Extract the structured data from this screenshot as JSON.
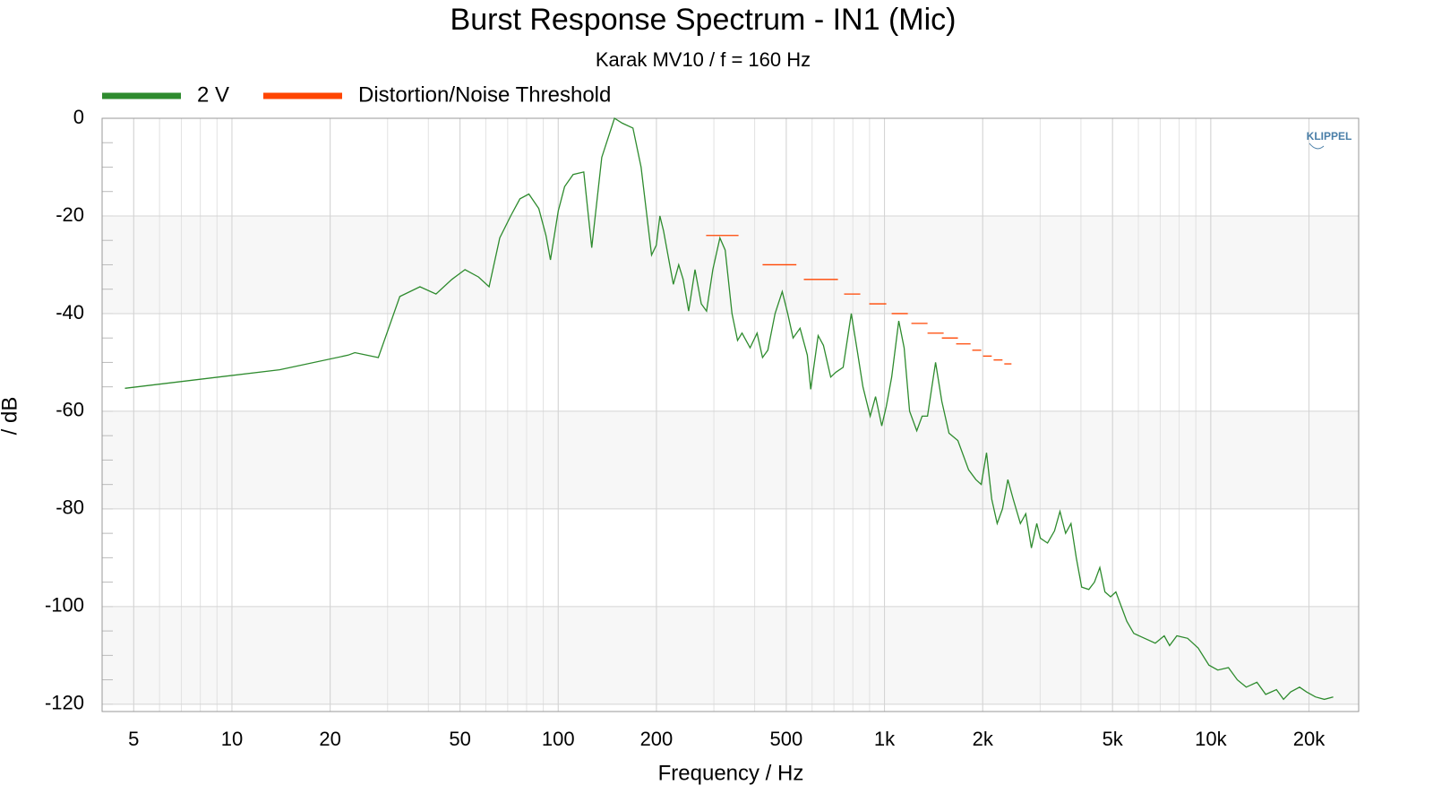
{
  "chart_data": {
    "type": "line",
    "title": "Burst Response Spectrum - IN1 (Mic)",
    "subtitle": "Karak MV10 / f = 160 Hz",
    "x_label": "Frequency / Hz",
    "y_label": "/ dB",
    "watermark": "KLIPPEL",
    "x_scale": "log",
    "grid": true,
    "minor_grid": true,
    "legend": "top-left",
    "xlim": [
      4,
      28400
    ],
    "ylim": [
      -121.5,
      0
    ],
    "xticks": [
      5,
      10,
      20,
      50,
      100,
      200,
      500,
      {
        "value": 1000,
        "label": "1k"
      },
      {
        "value": 2000,
        "label": "2k"
      },
      {
        "value": 5000,
        "label": "5k"
      },
      {
        "value": 10000,
        "label": "10k"
      },
      {
        "value": 20000,
        "label": "20k"
      }
    ],
    "yticks": [
      0,
      -20,
      -40,
      -60,
      -80,
      -100,
      -120
    ],
    "series": [
      {
        "name": "2 V",
        "color": "#2e8b2e",
        "x": [
          4.7,
          14.0,
          22.7,
          23.8,
          28.1,
          32.7,
          37.7,
          42.2,
          47.2,
          51.8,
          57,
          61.4,
          66.2,
          71.5,
          76.3,
          81.3,
          87.2,
          91.7,
          94.7,
          100,
          104.6,
          111.1,
          119.8,
          126.7,
          136,
          148.8,
          157.1,
          169.4,
          179.5,
          193.3,
          199.8,
          205,
          210.2,
          216.9,
          225.3,
          234,
          241.6,
          251,
          262.6,
          274.4,
          284.8,
          297.8,
          313,
          325,
          341,
          354.6,
          366,
          387.3,
          407,
          423,
          439,
          462,
          486,
          505,
          524.6,
          551,
          580,
          594,
          626,
          650,
          684,
          710,
          747,
          791,
          827,
          859,
          904,
          939,
          981,
          1013,
          1052,
          1106,
          1149,
          1194,
          1256,
          1304,
          1355,
          1434,
          1499,
          1577,
          1679,
          1811,
          1906,
          1979,
          2055,
          2132,
          2215,
          2300,
          2389,
          2480,
          2610,
          2710,
          2820,
          2930,
          3005,
          3160,
          3320,
          3450,
          3590,
          3730,
          3870,
          4020,
          4230,
          4400,
          4570,
          4740,
          4930,
          5120,
          5320,
          5530,
          5810,
          6270,
          6760,
          7200,
          7480,
          7870,
          8490,
          9150,
          9870,
          10510,
          11330,
          12060,
          12850,
          13850,
          14740,
          15900,
          16710,
          17570,
          18710,
          19670,
          20940,
          22290,
          23730
        ],
        "values": [
          -55.3,
          -51.5,
          -48.5,
          -48,
          -49,
          -36.5,
          -34.5,
          -36,
          -33,
          -31,
          -32.5,
          -34.5,
          -24.5,
          -20,
          -16.5,
          -15.5,
          -18.5,
          -24,
          -29,
          -19,
          -14,
          -11.5,
          -11,
          -26.5,
          -8,
          0,
          -1,
          -2,
          -10,
          -28,
          -26,
          -20,
          -23,
          -28,
          -34,
          -30,
          -33,
          -39.5,
          -31,
          -38,
          -39.5,
          -31,
          -24.5,
          -27,
          -40,
          -45.5,
          -44,
          -47,
          -44,
          -49,
          -47.5,
          -40,
          -35.5,
          -40,
          -45,
          -43,
          -48.5,
          -55.5,
          -44.5,
          -46.5,
          -53,
          -52,
          -51,
          -40,
          -48,
          -55,
          -61,
          -57,
          -63,
          -59,
          -53,
          -41.5,
          -47,
          -60,
          -64,
          -61,
          -61,
          -50,
          -58,
          -64.5,
          -66,
          -72,
          -74,
          -75,
          -68.5,
          -78,
          -83,
          -80,
          -74,
          -78,
          -83,
          -81,
          -88,
          -83,
          -86,
          -87,
          -84.5,
          -80.5,
          -85,
          -83,
          -90,
          -96,
          -96.5,
          -95,
          -92,
          -97,
          -98,
          -97,
          -100,
          -103,
          -105.5,
          -106.5,
          -107.5,
          -106,
          -108,
          -106,
          -106.5,
          -108.5,
          -112,
          -113,
          -112.5,
          -115,
          -116.5,
          -115.5,
          -118,
          -117,
          -119,
          -117.5,
          -116.5,
          -117.5,
          -118.5,
          -119,
          -118.5
        ]
      },
      {
        "name": "Distortion/Noise Threshold",
        "color": "#ff4500",
        "x_start": [
          284,
          423,
          566,
          752,
          898,
          1052,
          1209,
          1355,
          1499,
          1658,
          1858,
          2005,
          2160,
          2329
        ],
        "x_end": [
          357,
          537,
          720,
          843,
          1013,
          1179,
          1355,
          1518,
          1679,
          1836,
          1979,
          2132,
          2300,
          2450
        ],
        "values": [
          -24,
          -30,
          -33,
          -36,
          -38,
          -40,
          -42,
          -44,
          -45,
          -46.2,
          -47.5,
          -48.7,
          -49.5,
          -50.3
        ]
      }
    ]
  }
}
